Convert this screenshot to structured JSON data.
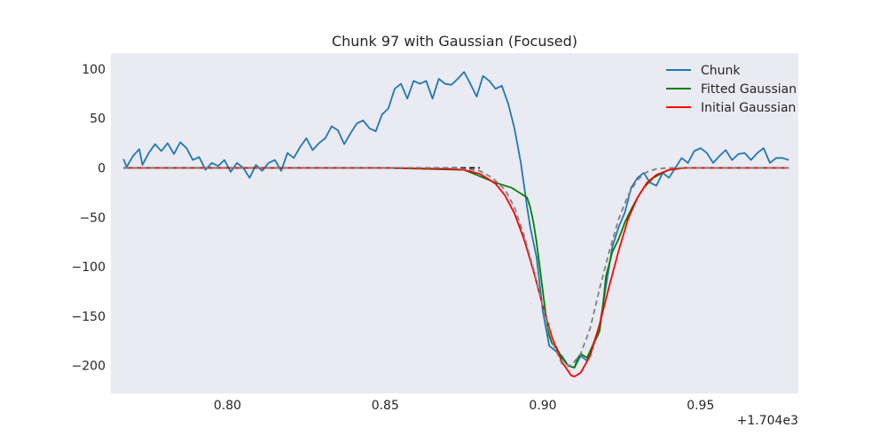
{
  "chart_data": {
    "type": "line",
    "title": "Chunk 97 with Gaussian (Focused)",
    "xlabel": "",
    "ylabel": "",
    "x_offset_label": "+1.704e3",
    "xlim": [
      1704.763,
      1704.981
    ],
    "ylim": [
      -228,
      116
    ],
    "x_ticks": [
      1704.8,
      1704.85,
      1704.9,
      1704.95
    ],
    "x_tick_labels": [
      "0.80",
      "0.85",
      "0.90",
      "0.95"
    ],
    "y_ticks": [
      100,
      50,
      0,
      -50,
      -100,
      -150,
      -200
    ],
    "y_tick_labels": [
      "100",
      "50",
      "0",
      "−50",
      "−100",
      "−150",
      "−200"
    ],
    "grid": false,
    "background": "#eaeaf2",
    "legend_position": "top-right",
    "series": [
      {
        "name": "Chunk",
        "color": "#1f77b4",
        "dash": "",
        "legend": true,
        "x": [
          1704.767,
          1704.768,
          1704.77,
          1704.772,
          1704.773,
          1704.775,
          1704.777,
          1704.779,
          1704.781,
          1704.783,
          1704.785,
          1704.787,
          1704.789,
          1704.791,
          1704.793,
          1704.795,
          1704.797,
          1704.799,
          1704.801,
          1704.803,
          1704.805,
          1704.807,
          1704.809,
          1704.811,
          1704.813,
          1704.815,
          1704.817,
          1704.819,
          1704.821,
          1704.823,
          1704.825,
          1704.827,
          1704.829,
          1704.831,
          1704.833,
          1704.835,
          1704.837,
          1704.839,
          1704.841,
          1704.843,
          1704.845,
          1704.847,
          1704.849,
          1704.851,
          1704.853,
          1704.855,
          1704.857,
          1704.859,
          1704.861,
          1704.863,
          1704.865,
          1704.867,
          1704.869,
          1704.871,
          1704.873,
          1704.875,
          1704.877,
          1704.879,
          1704.881,
          1704.883,
          1704.885,
          1704.887,
          1704.889,
          1704.891,
          1704.893,
          1704.895,
          1704.896,
          1704.898,
          1704.9,
          1704.902,
          1704.904,
          1704.906,
          1704.908,
          1704.91,
          1704.912,
          1704.914,
          1704.916,
          1704.918,
          1704.92,
          1704.922,
          1704.924,
          1704.926,
          1704.928,
          1704.93,
          1704.932,
          1704.934,
          1704.936,
          1704.938,
          1704.94,
          1704.942,
          1704.944,
          1704.946,
          1704.948,
          1704.95,
          1704.952,
          1704.954,
          1704.956,
          1704.958,
          1704.96,
          1704.962,
          1704.964,
          1704.966,
          1704.968,
          1704.97,
          1704.972,
          1704.974,
          1704.976,
          1704.978
        ],
        "y": [
          9,
          1,
          12,
          19,
          3,
          15,
          24,
          17,
          25,
          14,
          26,
          20,
          8,
          11,
          -2,
          5,
          2,
          8,
          -4,
          5,
          0,
          -10,
          3,
          -3,
          5,
          8,
          -3,
          15,
          10,
          21,
          30,
          18,
          25,
          30,
          42,
          38,
          24,
          35,
          45,
          48,
          40,
          37,
          54,
          60,
          80,
          85,
          70,
          88,
          85,
          88,
          70,
          90,
          85,
          84,
          90,
          97,
          85,
          72,
          93,
          88,
          80,
          83,
          65,
          40,
          5,
          -40,
          -60,
          -90,
          -145,
          -180,
          -185,
          -190,
          -200,
          -202,
          -190,
          -195,
          -178,
          -160,
          -120,
          -80,
          -60,
          -45,
          -20,
          -10,
          -5,
          -15,
          -18,
          -5,
          -10,
          0,
          10,
          5,
          17,
          20,
          15,
          5,
          12,
          18,
          8,
          14,
          15,
          8,
          15,
          20,
          5,
          10,
          10,
          8
        ]
      },
      {
        "name": "Fitted Gaussian",
        "color": "#008000",
        "dash": "",
        "legend": true,
        "x": [
          1704.767,
          1704.8,
          1704.85,
          1704.875,
          1704.885,
          1704.89,
          1704.895,
          1704.896,
          1704.897,
          1704.898,
          1704.899,
          1704.9,
          1704.901,
          1704.902,
          1704.903,
          1704.904,
          1704.906,
          1704.908,
          1704.91,
          1704.911,
          1704.912,
          1704.913,
          1704.914,
          1704.915,
          1704.916,
          1704.917,
          1704.918,
          1704.919,
          1704.92,
          1704.922,
          1704.924,
          1704.926,
          1704.928,
          1704.93,
          1704.932,
          1704.935,
          1704.938,
          1704.94,
          1704.945,
          1704.95,
          1704.978
        ],
        "y": [
          0,
          0,
          0,
          -2,
          -15,
          -20,
          -30,
          -40,
          -55,
          -75,
          -100,
          -125,
          -150,
          -170,
          -178,
          -180,
          -192,
          -200,
          -202,
          -193,
          -188,
          -190,
          -192,
          -185,
          -178,
          -172,
          -165,
          -140,
          -110,
          -85,
          -72,
          -55,
          -42,
          -30,
          -20,
          -10,
          -5,
          -2,
          0,
          0,
          0
        ]
      },
      {
        "name": "Initial Gaussian",
        "color": "#ff0000",
        "dash": "",
        "legend": true,
        "x": [
          1704.767,
          1704.8,
          1704.85,
          1704.87,
          1704.875,
          1704.88,
          1704.885,
          1704.888,
          1704.891,
          1704.894,
          1704.897,
          1704.9,
          1704.903,
          1704.906,
          1704.909,
          1704.91,
          1704.912,
          1704.915,
          1704.918,
          1704.921,
          1704.924,
          1704.927,
          1704.93,
          1704.933,
          1704.936,
          1704.94,
          1704.945,
          1704.95,
          1704.978
        ],
        "y": [
          0,
          0,
          0,
          -1,
          -2,
          -6,
          -16,
          -28,
          -46,
          -72,
          -104,
          -140,
          -172,
          -196,
          -210,
          -211,
          -207,
          -190,
          -158,
          -120,
          -84,
          -52,
          -30,
          -15,
          -7,
          -2,
          0,
          0,
          0
        ]
      },
      {
        "name": "",
        "color": "#000000",
        "dash": "6,4",
        "legend": false,
        "x": [
          1704.767,
          1704.78,
          1704.8,
          1704.82,
          1704.84,
          1704.86,
          1704.88
        ],
        "y": [
          0,
          0,
          0,
          0,
          0,
          0,
          0
        ]
      },
      {
        "name": "",
        "color": "#808080",
        "dash": "6,4",
        "legend": false,
        "x": [
          1704.767,
          1704.8,
          1704.85,
          1704.87,
          1704.875,
          1704.88,
          1704.884,
          1704.888,
          1704.891,
          1704.894,
          1704.897,
          1704.9,
          1704.903,
          1704.906,
          1704.909,
          1704.912,
          1704.915,
          1704.918,
          1704.921,
          1704.924,
          1704.927,
          1704.93,
          1704.933,
          1704.936,
          1704.94,
          1704.945,
          1704.95,
          1704.978
        ],
        "y": [
          0,
          0,
          0,
          0,
          -1,
          -3,
          -10,
          -22,
          -40,
          -68,
          -102,
          -140,
          -176,
          -198,
          -200,
          -188,
          -162,
          -122,
          -85,
          -52,
          -28,
          -12,
          -4,
          -1,
          0,
          0,
          0,
          0
        ]
      }
    ]
  }
}
